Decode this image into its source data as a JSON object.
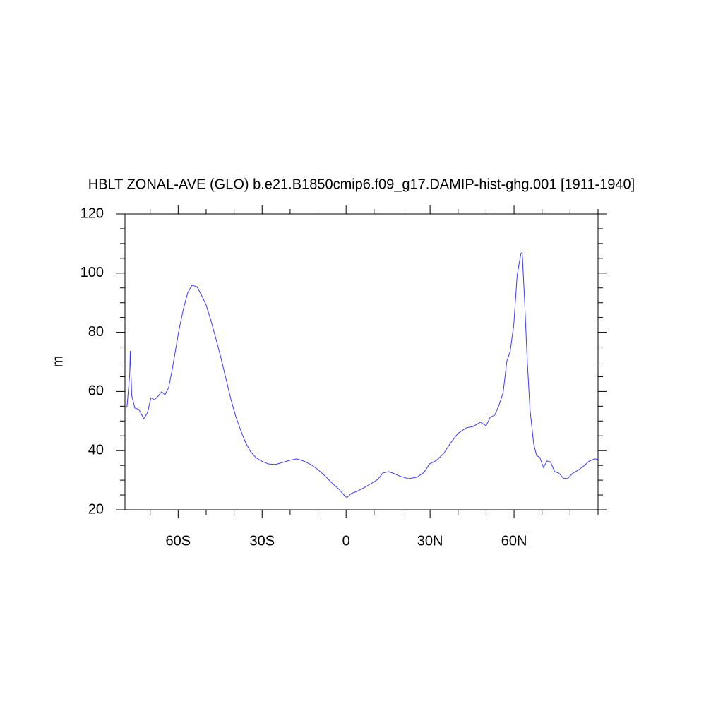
{
  "chart_data": {
    "type": "line",
    "title": "HBLT ZONAL-AVE (GLO) b.e21.B1850cmip6.f09_g17.DAMIP-hist-ghg.001 [1911-1940]",
    "ylabel": "m",
    "color": "#3b3bff",
    "x": [
      -78.3,
      -77.3,
      -77.1,
      -76.6,
      -75.5,
      -74,
      -72.3,
      -71,
      -69.7,
      -68.5,
      -67.2,
      -65.9,
      -64.7,
      -63.4,
      -62.2,
      -60.9,
      -59.6,
      -58.1,
      -56.6,
      -55.1,
      -53.3,
      -51.8,
      -50,
      -48.3,
      -46.5,
      -44.7,
      -43,
      -41.2,
      -39.4,
      -37.6,
      -35.9,
      -34.1,
      -32.3,
      -30.3,
      -27.8,
      -25.3,
      -22.7,
      -20.2,
      -17.7,
      -15.2,
      -12.6,
      -10.1,
      -7.6,
      -5.1,
      -2.5,
      -0.8,
      0.3,
      1.8,
      3.8,
      6.3,
      8.8,
      11.4,
      13.1,
      15.2,
      17.2,
      19.7,
      22.2,
      25.3,
      27.8,
      29.8,
      32.3,
      34.9,
      37.4,
      39.9,
      42.9,
      45.5,
      48,
      50,
      51.5,
      53.1,
      54.6,
      56.1,
      57.4,
      58.6,
      59.9,
      61.1,
      62.4,
      62.9,
      63.7,
      64.7,
      65.7,
      67,
      68,
      69.2,
      70.5,
      71.8,
      73,
      74.5,
      76,
      77.6,
      79.1,
      80.8,
      82.9,
      84.9,
      86.9,
      88.9,
      90
    ],
    "values": [
      54.6,
      65.8,
      73.7,
      58.7,
      54.4,
      53.9,
      50.8,
      52.7,
      57.9,
      57.2,
      58.4,
      59.9,
      58.9,
      61.3,
      67,
      74.2,
      81.3,
      88,
      93.3,
      95.9,
      95.4,
      92.8,
      89.2,
      84,
      77.8,
      71.3,
      64.6,
      57.5,
      51.5,
      46.7,
      42.7,
      39.6,
      37.7,
      36.5,
      35.5,
      35.3,
      36,
      36.7,
      37.2,
      36.5,
      35.3,
      33.6,
      31.5,
      29.1,
      26.9,
      25,
      24.1,
      25.5,
      26.2,
      27.4,
      28.8,
      30.3,
      32.4,
      32.9,
      32.2,
      31.2,
      30.5,
      31,
      32.6,
      35.5,
      36.7,
      39.1,
      42.7,
      45.8,
      47.7,
      48.2,
      49.6,
      48.4,
      51.3,
      52,
      55.3,
      59.6,
      70.1,
      73.5,
      82.5,
      99.2,
      106.4,
      107.1,
      92.1,
      70.6,
      53.9,
      42.4,
      38.4,
      37.7,
      34.3,
      36.5,
      36.2,
      32.9,
      32.4,
      30.7,
      30.5,
      32.2,
      33.4,
      34.8,
      36.5,
      37.2,
      37
    ],
    "xlim": [
      -79,
      90
    ],
    "xticks": [
      {
        "value": -60,
        "label": "60S"
      },
      {
        "value": -30,
        "label": "30S"
      },
      0,
      {
        "value": 30,
        "label": "30N"
      },
      {
        "value": 60,
        "label": "60N"
      }
    ],
    "xminorticks": [
      -70,
      -50,
      -40,
      -20,
      -10,
      10,
      20,
      40,
      50,
      70,
      80,
      90
    ],
    "ylim": [
      20,
      120
    ],
    "yticks": [
      20,
      40,
      60,
      80,
      100,
      120
    ],
    "yminorticks": [
      25,
      30,
      35,
      45,
      50,
      55,
      65,
      70,
      75,
      85,
      90,
      95,
      105,
      110,
      115
    ]
  }
}
